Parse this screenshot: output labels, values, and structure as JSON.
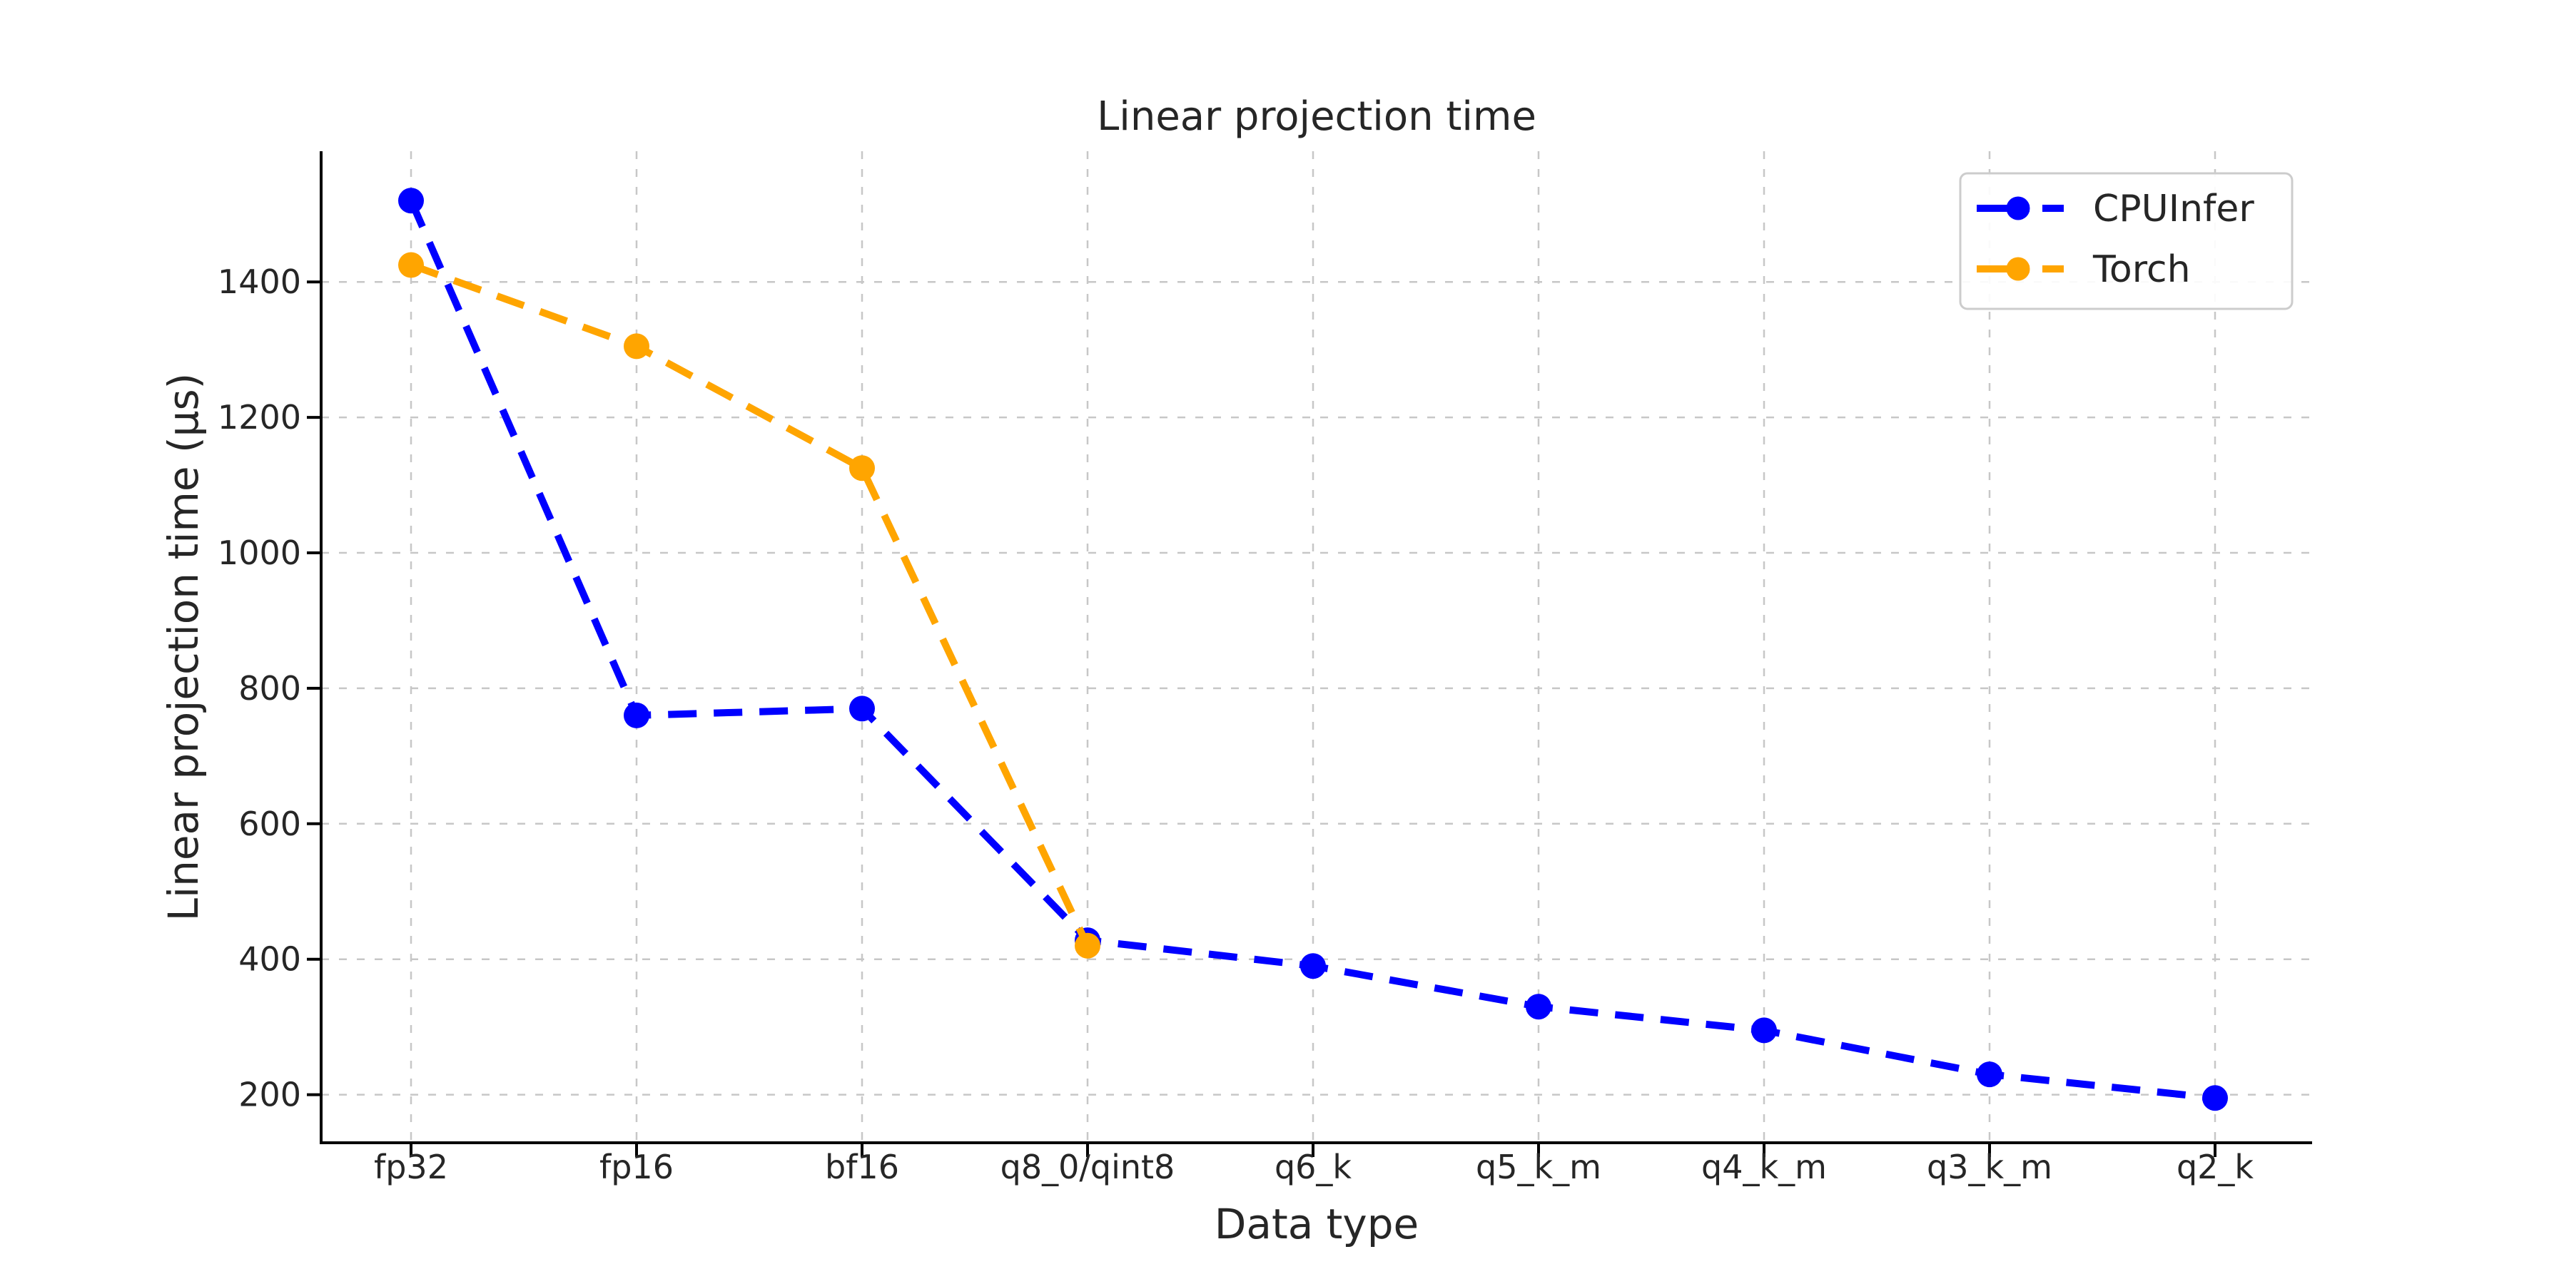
{
  "figure": {
    "background": "#ffffff",
    "text_color": "#262626",
    "grid_color": "#c7c7c7",
    "spine_color": "#000000"
  },
  "chart_data": {
    "type": "line",
    "title": "Linear projection time",
    "xlabel": "Data type",
    "ylabel": "Linear projection time (μs)",
    "categories": [
      "fp32",
      "fp16",
      "bf16",
      "q8_0/qint8",
      "q6_k",
      "q5_k_m",
      "q4_k_m",
      "q3_k_m",
      "q2_k"
    ],
    "series": [
      {
        "name": "CPUInfer",
        "color": "#0000ff",
        "line_style": "dashed",
        "marker": "circle",
        "values": [
          1520,
          760,
          770,
          428,
          390,
          330,
          295,
          230,
          195
        ]
      },
      {
        "name": "Torch",
        "color": "#ffa500",
        "line_style": "dashed",
        "marker": "circle",
        "values": [
          1425,
          1305,
          1125,
          420,
          null,
          null,
          null,
          null,
          null
        ]
      }
    ],
    "yticks": [
      200,
      400,
      600,
      800,
      1000,
      1200,
      1400
    ],
    "ylim": [
      129,
      1593
    ],
    "grid": true,
    "legend": {
      "position": "upper right"
    }
  }
}
